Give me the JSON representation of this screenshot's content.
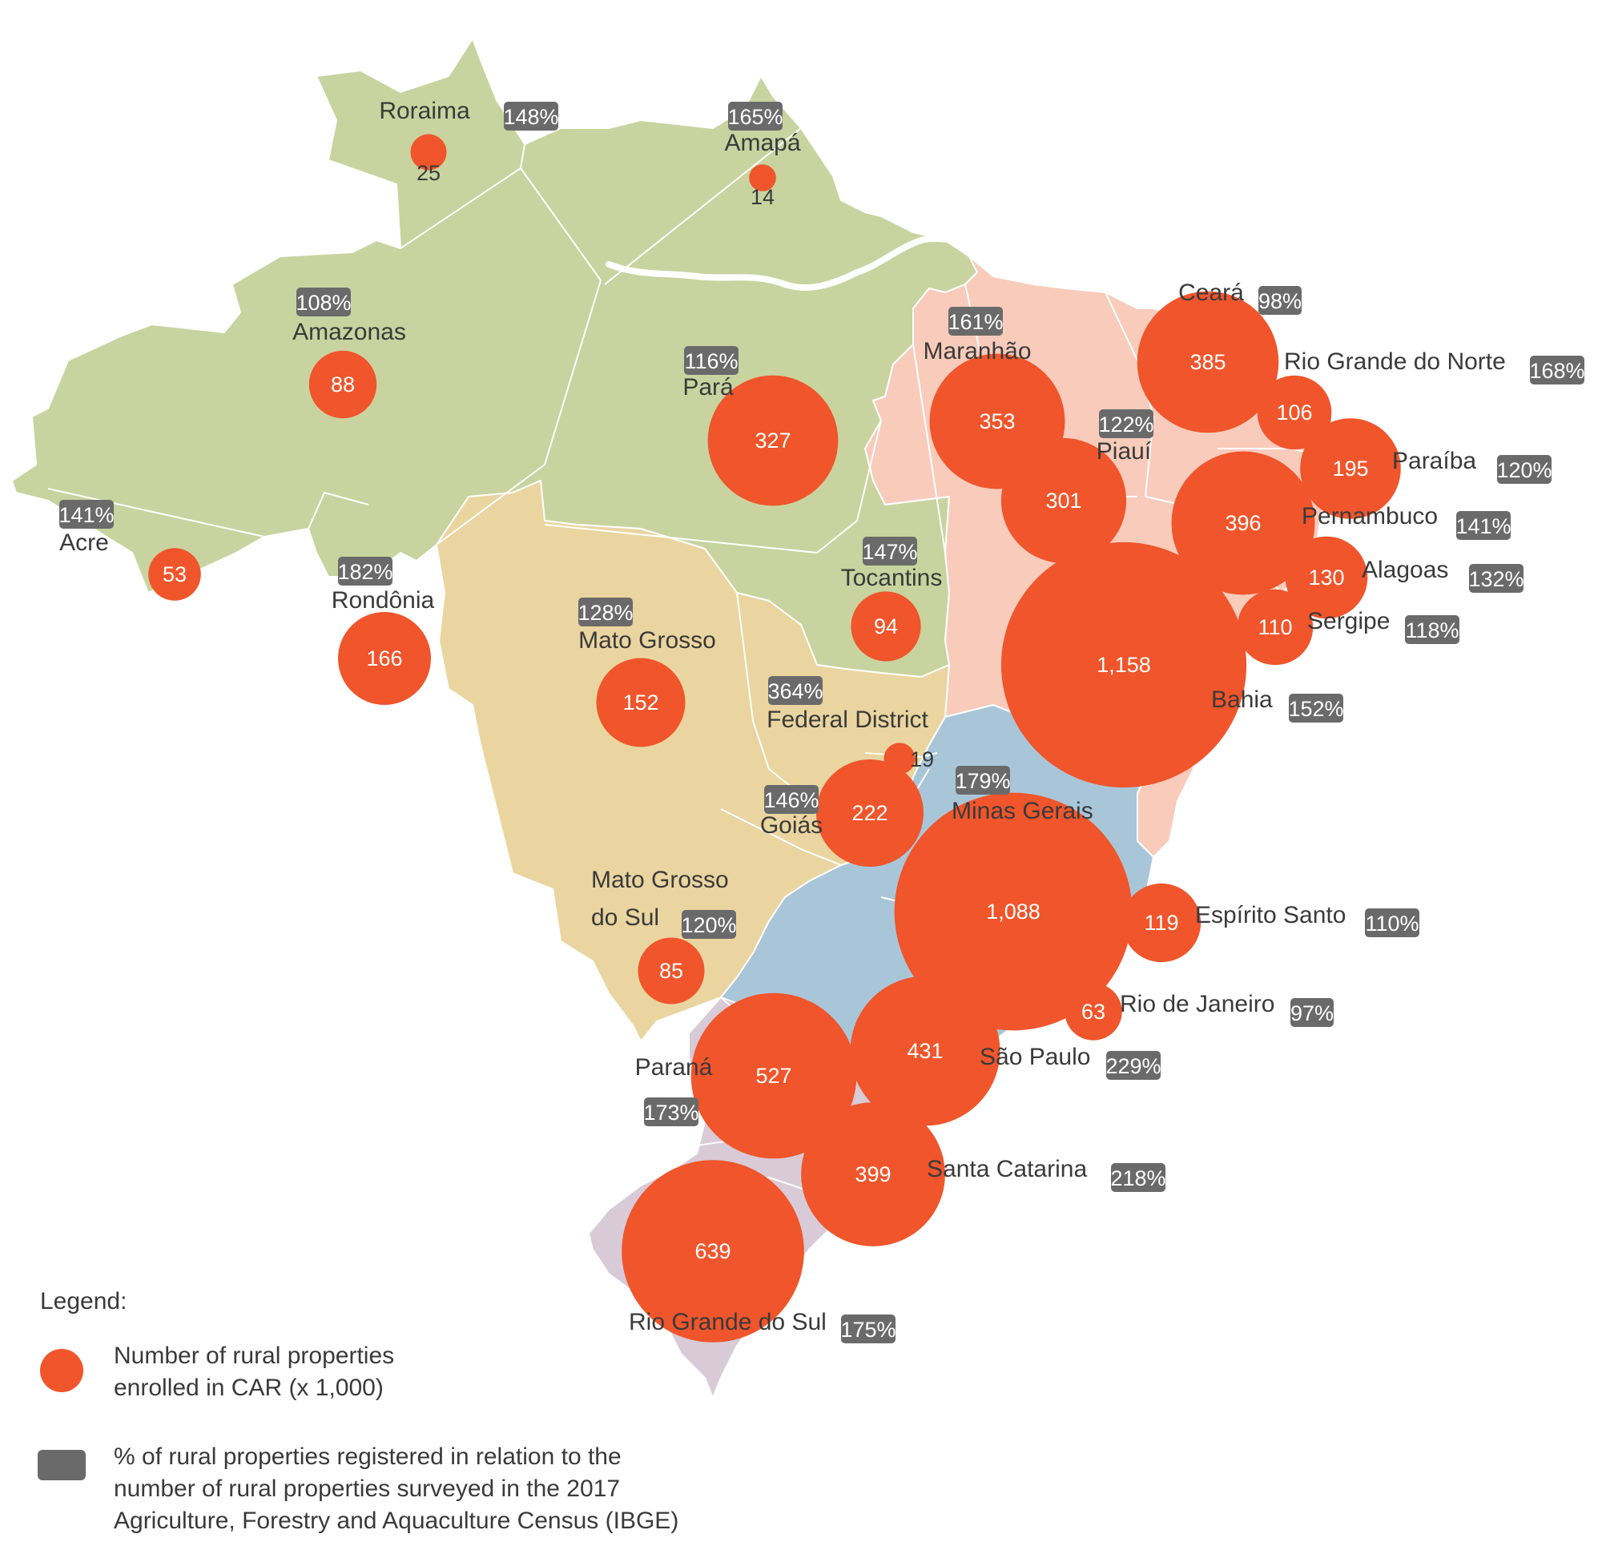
{
  "colors": {
    "north_region": "#c9d39f",
    "northeast_region": "#f8cbbb",
    "center_west_region": "#ead5a0",
    "southeast_region": "#a9c6d8",
    "south_region": "#d8cad7",
    "bubble": "#f0552b",
    "badge": "#6a6a6a",
    "border": "#ffffff",
    "text": "#3a3a3a"
  },
  "states": [
    {
      "id": "roraima",
      "name": "Roraima",
      "value": "25",
      "percent": "148%"
    },
    {
      "id": "amapa",
      "name": "Amapá",
      "value": "14",
      "percent": "165%"
    },
    {
      "id": "amazonas",
      "name": "Amazonas",
      "value": "88",
      "percent": "108%"
    },
    {
      "id": "para",
      "name": "Pará",
      "value": "327",
      "percent": "116%"
    },
    {
      "id": "acre",
      "name": "Acre",
      "value": "53",
      "percent": "141%"
    },
    {
      "id": "rondonia",
      "name": "Rondônia",
      "value": "166",
      "percent": "182%"
    },
    {
      "id": "tocantins",
      "name": "Tocantins",
      "value": "94",
      "percent": "147%"
    },
    {
      "id": "maranhao",
      "name": "Maranhão",
      "value": "353",
      "percent": "161%"
    },
    {
      "id": "piaui",
      "name": "Piauí",
      "value": "301",
      "percent": "122%"
    },
    {
      "id": "ceara",
      "name": "Ceará",
      "value": "385",
      "percent": "98%"
    },
    {
      "id": "rio-grande-do-norte",
      "name": "Rio Grande do Norte",
      "value": "106",
      "percent": "168%"
    },
    {
      "id": "paraiba",
      "name": "Paraíba",
      "value": "195",
      "percent": "120%"
    },
    {
      "id": "pernambuco",
      "name": "Pernambuco",
      "value": "396",
      "percent": "141%"
    },
    {
      "id": "alagoas",
      "name": "Alagoas",
      "value": "130",
      "percent": "132%"
    },
    {
      "id": "sergipe",
      "name": "Sergipe",
      "value": "110",
      "percent": "118%"
    },
    {
      "id": "bahia",
      "name": "Bahia",
      "value": "1,158",
      "percent": "152%"
    },
    {
      "id": "mato-grosso",
      "name": "Mato Grosso",
      "value": "152",
      "percent": "128%"
    },
    {
      "id": "federal-district",
      "name": "Federal District",
      "value": "19",
      "percent": "364%"
    },
    {
      "id": "goias",
      "name": "Goiás",
      "value": "222",
      "percent": "146%"
    },
    {
      "id": "mato-grosso-do-sul",
      "name": "Mato Grosso do Sul",
      "name_line1": "Mato Grosso",
      "name_line2": "do Sul",
      "value": "85",
      "percent": "120%"
    },
    {
      "id": "minas-gerais",
      "name": "Minas Gerais",
      "value": "1,088",
      "percent": "179%"
    },
    {
      "id": "espirito-santo",
      "name": "Espírito Santo",
      "value": "119",
      "percent": "110%"
    },
    {
      "id": "rio-de-janeiro",
      "name": "Rio de Janeiro",
      "value": "63",
      "percent": "97%"
    },
    {
      "id": "sao-paulo",
      "name": "São Paulo",
      "value": "431",
      "percent": "229%"
    },
    {
      "id": "parana",
      "name": "Paraná",
      "value": "527",
      "percent": "173%"
    },
    {
      "id": "santa-catarina",
      "name": "Santa Catarina",
      "value": "399",
      "percent": "218%"
    },
    {
      "id": "rio-grande-do-sul",
      "name": "Rio Grande do Sul",
      "value": "639",
      "percent": "175%"
    }
  ],
  "legend": {
    "title": "Legend:",
    "bubble_line1": "Number of rural properties",
    "bubble_line2": "enrolled in CAR (x 1,000)",
    "badge_line1": "% of rural properties registered in relation to the",
    "badge_line2": "number of rural properties surveyed in the 2017",
    "badge_line3": "Agriculture, Forestry and Aquaculture Census (IBGE)"
  }
}
